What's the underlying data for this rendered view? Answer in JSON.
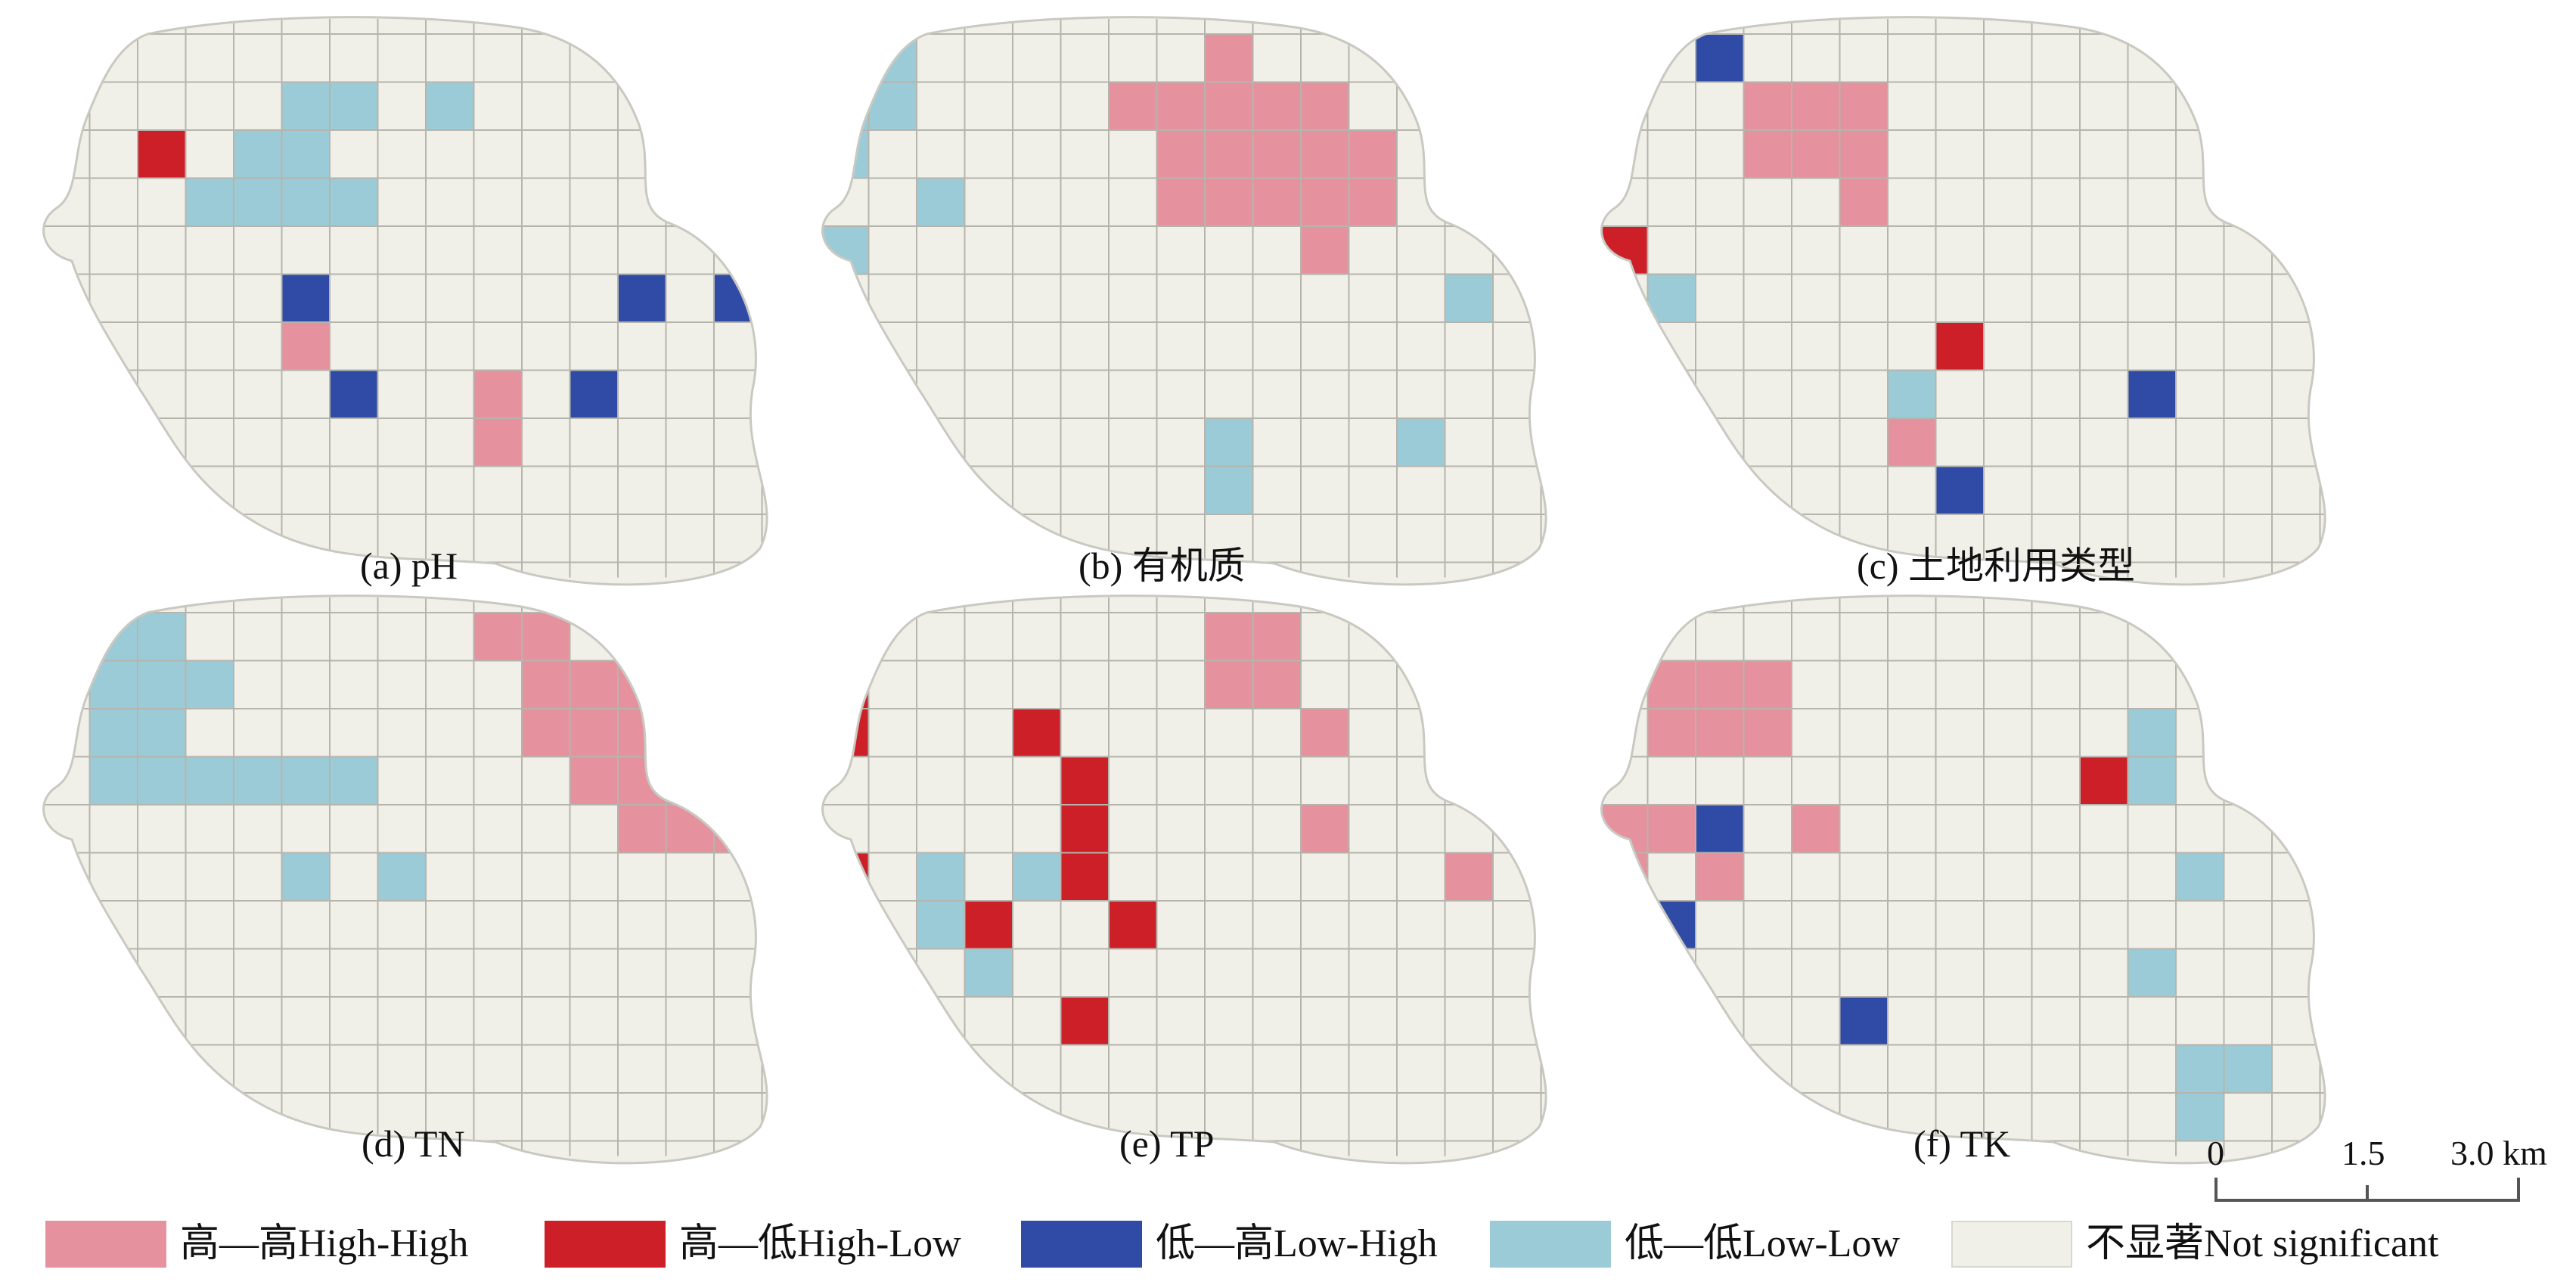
{
  "colors": {
    "high_high": "#e6919e",
    "high_low": "#cc1f27",
    "low_high": "#2f4ba5",
    "low_low": "#9ccbd8",
    "not_significant": "#f1f0e8",
    "grid": "#b5b5ad",
    "outline": "#c9c9c2"
  },
  "panels": [
    {
      "caption": "(a) pH",
      "cells": [
        {
          "row": 2,
          "col": 2,
          "cls": "high_low"
        },
        {
          "row": 1,
          "col": 5,
          "cls": "low_low"
        },
        {
          "row": 1,
          "col": 6,
          "cls": "low_low"
        },
        {
          "row": 1,
          "col": 8,
          "cls": "low_low"
        },
        {
          "row": 2,
          "col": 4,
          "cls": "low_low"
        },
        {
          "row": 2,
          "col": 5,
          "cls": "low_low"
        },
        {
          "row": 3,
          "col": 3,
          "cls": "low_low"
        },
        {
          "row": 3,
          "col": 4,
          "cls": "low_low"
        },
        {
          "row": 3,
          "col": 5,
          "cls": "low_low"
        },
        {
          "row": 3,
          "col": 6,
          "cls": "low_low"
        },
        {
          "row": 5,
          "col": 5,
          "cls": "low_high"
        },
        {
          "row": 5,
          "col": 12,
          "cls": "low_high"
        },
        {
          "row": 5,
          "col": 14,
          "cls": "low_high"
        },
        {
          "row": 6,
          "col": 5,
          "cls": "high_high"
        },
        {
          "row": 7,
          "col": 6,
          "cls": "low_high"
        },
        {
          "row": 7,
          "col": 9,
          "cls": "high_high"
        },
        {
          "row": 8,
          "col": 9,
          "cls": "high_high"
        },
        {
          "row": 7,
          "col": 11,
          "cls": "low_high"
        }
      ]
    },
    {
      "caption": "(b) 有机质",
      "cells": [
        {
          "row": 0,
          "col": 0,
          "cls": "low_low"
        },
        {
          "row": 0,
          "col": 1,
          "cls": "low_low"
        },
        {
          "row": 1,
          "col": 0,
          "cls": "low_low"
        },
        {
          "row": 1,
          "col": 1,
          "cls": "low_low"
        },
        {
          "row": 2,
          "col": 0,
          "cls": "low_low"
        },
        {
          "row": 3,
          "col": 2,
          "cls": "low_low"
        },
        {
          "row": 4,
          "col": 0,
          "cls": "low_low"
        },
        {
          "row": 0,
          "col": 8,
          "cls": "high_high"
        },
        {
          "row": 1,
          "col": 6,
          "cls": "high_high"
        },
        {
          "row": 1,
          "col": 7,
          "cls": "high_high"
        },
        {
          "row": 1,
          "col": 8,
          "cls": "high_high"
        },
        {
          "row": 1,
          "col": 9,
          "cls": "high_high"
        },
        {
          "row": 1,
          "col": 10,
          "cls": "high_high"
        },
        {
          "row": 2,
          "col": 7,
          "cls": "high_high"
        },
        {
          "row": 2,
          "col": 8,
          "cls": "high_high"
        },
        {
          "row": 2,
          "col": 9,
          "cls": "high_high"
        },
        {
          "row": 2,
          "col": 10,
          "cls": "high_high"
        },
        {
          "row": 2,
          "col": 11,
          "cls": "high_high"
        },
        {
          "row": 3,
          "col": 7,
          "cls": "high_high"
        },
        {
          "row": 3,
          "col": 8,
          "cls": "high_high"
        },
        {
          "row": 3,
          "col": 9,
          "cls": "high_high"
        },
        {
          "row": 3,
          "col": 10,
          "cls": "high_high"
        },
        {
          "row": 3,
          "col": 11,
          "cls": "high_high"
        },
        {
          "row": 4,
          "col": 10,
          "cls": "high_high"
        },
        {
          "row": 5,
          "col": 13,
          "cls": "low_low"
        },
        {
          "row": 8,
          "col": 8,
          "cls": "low_low"
        },
        {
          "row": 8,
          "col": 12,
          "cls": "low_low"
        },
        {
          "row": 9,
          "col": 8,
          "cls": "low_low"
        }
      ]
    },
    {
      "caption": "(c) 土地利用类型",
      "cells": [
        {
          "row": 0,
          "col": 2,
          "cls": "low_high"
        },
        {
          "row": 1,
          "col": 3,
          "cls": "high_high"
        },
        {
          "row": 1,
          "col": 4,
          "cls": "high_high"
        },
        {
          "row": 1,
          "col": 5,
          "cls": "high_high"
        },
        {
          "row": 2,
          "col": 3,
          "cls": "high_high"
        },
        {
          "row": 2,
          "col": 4,
          "cls": "high_high"
        },
        {
          "row": 2,
          "col": 5,
          "cls": "high_high"
        },
        {
          "row": 3,
          "col": 5,
          "cls": "high_high"
        },
        {
          "row": 4,
          "col": 0,
          "cls": "high_low"
        },
        {
          "row": 5,
          "col": 1,
          "cls": "low_low"
        },
        {
          "row": 6,
          "col": 7,
          "cls": "high_low"
        },
        {
          "row": 7,
          "col": 6,
          "cls": "low_low"
        },
        {
          "row": 7,
          "col": 11,
          "cls": "low_high"
        },
        {
          "row": 8,
          "col": 6,
          "cls": "high_high"
        },
        {
          "row": 9,
          "col": 7,
          "cls": "low_high"
        }
      ]
    },
    {
      "caption": "(d) TN",
      "cells": [
        {
          "row": 0,
          "col": 1,
          "cls": "low_low"
        },
        {
          "row": 0,
          "col": 2,
          "cls": "low_low"
        },
        {
          "row": 1,
          "col": 1,
          "cls": "low_low"
        },
        {
          "row": 1,
          "col": 2,
          "cls": "low_low"
        },
        {
          "row": 1,
          "col": 3,
          "cls": "low_low"
        },
        {
          "row": 2,
          "col": 1,
          "cls": "low_low"
        },
        {
          "row": 2,
          "col": 2,
          "cls": "low_low"
        },
        {
          "row": 3,
          "col": 1,
          "cls": "low_low"
        },
        {
          "row": 3,
          "col": 2,
          "cls": "low_low"
        },
        {
          "row": 3,
          "col": 3,
          "cls": "low_low"
        },
        {
          "row": 3,
          "col": 4,
          "cls": "low_low"
        },
        {
          "row": 3,
          "col": 5,
          "cls": "low_low"
        },
        {
          "row": 3,
          "col": 6,
          "cls": "low_low"
        },
        {
          "row": 0,
          "col": 9,
          "cls": "high_high"
        },
        {
          "row": 0,
          "col": 10,
          "cls": "high_high"
        },
        {
          "row": 1,
          "col": 10,
          "cls": "high_high"
        },
        {
          "row": 1,
          "col": 11,
          "cls": "high_high"
        },
        {
          "row": 1,
          "col": 12,
          "cls": "high_high"
        },
        {
          "row": 2,
          "col": 10,
          "cls": "high_high"
        },
        {
          "row": 2,
          "col": 11,
          "cls": "high_high"
        },
        {
          "row": 2,
          "col": 12,
          "cls": "high_high"
        },
        {
          "row": 3,
          "col": 11,
          "cls": "high_high"
        },
        {
          "row": 3,
          "col": 12,
          "cls": "high_high"
        },
        {
          "row": 3,
          "col": 13,
          "cls": "high_high"
        },
        {
          "row": 4,
          "col": 12,
          "cls": "high_high"
        },
        {
          "row": 4,
          "col": 13,
          "cls": "high_high"
        },
        {
          "row": 4,
          "col": 14,
          "cls": "high_high"
        },
        {
          "row": 5,
          "col": 5,
          "cls": "low_low"
        },
        {
          "row": 5,
          "col": 7,
          "cls": "low_low"
        }
      ]
    },
    {
      "caption": "(e) TP",
      "cells": [
        {
          "row": 1,
          "col": 0,
          "cls": "high_low"
        },
        {
          "row": 2,
          "col": 0,
          "cls": "high_low"
        },
        {
          "row": 2,
          "col": 4,
          "cls": "high_low"
        },
        {
          "row": 3,
          "col": 5,
          "cls": "high_low"
        },
        {
          "row": 4,
          "col": 5,
          "cls": "high_low"
        },
        {
          "row": 5,
          "col": 5,
          "cls": "high_low"
        },
        {
          "row": 0,
          "col": 8,
          "cls": "high_high"
        },
        {
          "row": 0,
          "col": 9,
          "cls": "high_high"
        },
        {
          "row": 1,
          "col": 8,
          "cls": "high_high"
        },
        {
          "row": 1,
          "col": 9,
          "cls": "high_high"
        },
        {
          "row": 2,
          "col": 10,
          "cls": "high_high"
        },
        {
          "row": 4,
          "col": 10,
          "cls": "high_high"
        },
        {
          "row": 5,
          "col": 0,
          "cls": "high_low"
        },
        {
          "row": 5,
          "col": 2,
          "cls": "low_low"
        },
        {
          "row": 5,
          "col": 4,
          "cls": "low_low"
        },
        {
          "row": 6,
          "col": 2,
          "cls": "low_low"
        },
        {
          "row": 7,
          "col": 3,
          "cls": "low_low"
        },
        {
          "row": 6,
          "col": 3,
          "cls": "high_low"
        },
        {
          "row": 6,
          "col": 6,
          "cls": "high_low"
        },
        {
          "row": 8,
          "col": 5,
          "cls": "high_low"
        },
        {
          "row": 5,
          "col": 13,
          "cls": "high_high"
        }
      ]
    },
    {
      "caption": "(f) TK",
      "cells": [
        {
          "row": 1,
          "col": 1,
          "cls": "high_high"
        },
        {
          "row": 1,
          "col": 2,
          "cls": "high_high"
        },
        {
          "row": 1,
          "col": 3,
          "cls": "high_high"
        },
        {
          "row": 2,
          "col": 1,
          "cls": "high_high"
        },
        {
          "row": 2,
          "col": 2,
          "cls": "high_high"
        },
        {
          "row": 2,
          "col": 3,
          "cls": "high_high"
        },
        {
          "row": 3,
          "col": 10,
          "cls": "high_low"
        },
        {
          "row": 3,
          "col": 11,
          "cls": "low_low"
        },
        {
          "row": 2,
          "col": 11,
          "cls": "low_low"
        },
        {
          "row": 4,
          "col": 0,
          "cls": "high_high"
        },
        {
          "row": 4,
          "col": 1,
          "cls": "high_high"
        },
        {
          "row": 4,
          "col": 2,
          "cls": "low_high"
        },
        {
          "row": 4,
          "col": 4,
          "cls": "high_high"
        },
        {
          "row": 5,
          "col": 0,
          "cls": "high_high"
        },
        {
          "row": 5,
          "col": 2,
          "cls": "high_high"
        },
        {
          "row": 6,
          "col": 1,
          "cls": "low_high"
        },
        {
          "row": 5,
          "col": 12,
          "cls": "low_low"
        },
        {
          "row": 7,
          "col": 11,
          "cls": "low_low"
        },
        {
          "row": 8,
          "col": 5,
          "cls": "low_high"
        },
        {
          "row": 9,
          "col": 12,
          "cls": "low_low"
        },
        {
          "row": 9,
          "col": 13,
          "cls": "low_low"
        },
        {
          "row": 10,
          "col": 12,
          "cls": "low_low"
        }
      ]
    }
  ],
  "scale_bar": {
    "ticks": [
      "0",
      "1.5",
      "3.0 km"
    ]
  },
  "legend": [
    {
      "key": "high_high",
      "label": "高—高High-High"
    },
    {
      "key": "high_low",
      "label": "高—低High-Low"
    },
    {
      "key": "low_high",
      "label": "低—高Low-High"
    },
    {
      "key": "low_low",
      "label": "低—低Low-Low"
    },
    {
      "key": "not_significant",
      "label": "不显著Not significant"
    }
  ]
}
